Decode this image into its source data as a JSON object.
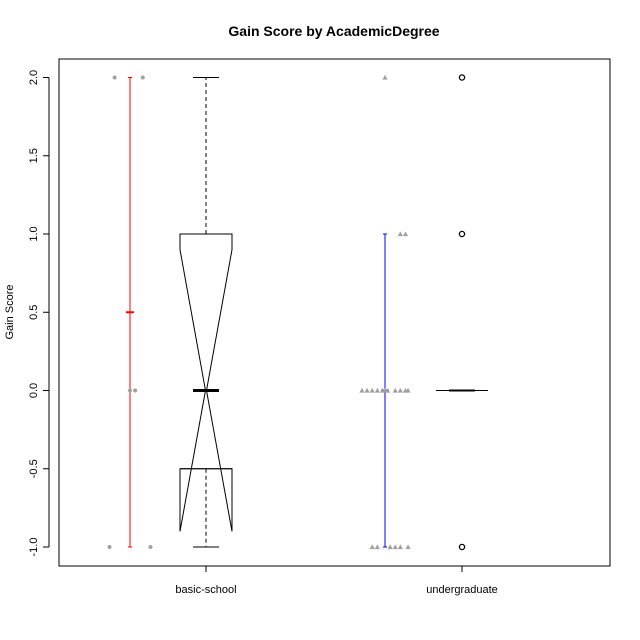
{
  "chart_data": {
    "type": "box",
    "title": "Gain Score by AcademicDegree",
    "xlabel": "",
    "ylabel": "Gain Score",
    "categories": [
      "basic-school",
      "undergraduate"
    ],
    "yticks": [
      -1.0,
      -0.5,
      0.0,
      0.5,
      1.0,
      1.5,
      2.0
    ],
    "ytick_labels": [
      "-1.0",
      "-0.5",
      "0.0",
      "0.5",
      "1.0",
      "1.5",
      "2.0"
    ],
    "ylim": [
      -1.12,
      2.12
    ],
    "notched": true,
    "boxes": [
      {
        "category": "basic-school",
        "min": -1.0,
        "q1": -0.5,
        "median": 0.0,
        "q3": 1.0,
        "max": 2.0,
        "notch_low": -0.9,
        "notch_high": 0.9,
        "outliers": []
      },
      {
        "category": "undergraduate",
        "min": 0.0,
        "q1": 0.0,
        "median": 0.0,
        "q3": 0.0,
        "max": 0.0,
        "notch_low": 0.0,
        "notch_high": 0.0,
        "outliers": [
          2.0,
          1.0,
          -1.0
        ]
      }
    ],
    "mean_ci": [
      {
        "category": "basic-school",
        "mean": 0.5,
        "low": -1.0,
        "high": 2.0,
        "color": "#ff0000"
      },
      {
        "category": "undergraduate",
        "mean": 0.0,
        "low": -1.0,
        "high": 1.0,
        "color": "#0000ff"
      }
    ],
    "jitter_points": [
      {
        "category": "basic-school",
        "shape": "circle",
        "color": "#a0a0a0",
        "points": [
          {
            "dx": -0.06,
            "y": 2.0
          },
          {
            "dx": 0.05,
            "y": 2.0
          },
          {
            "dx": 0.0,
            "y": 0.0
          },
          {
            "dx": 0.02,
            "y": 0.0
          },
          {
            "dx": -0.08,
            "y": -1.0
          },
          {
            "dx": 0.08,
            "y": -1.0
          }
        ]
      },
      {
        "category": "undergraduate",
        "shape": "triangle",
        "color": "#a0a0a0",
        "points": [
          {
            "dx": 0.0,
            "y": 2.0
          },
          {
            "dx": 0.06,
            "y": 1.0
          },
          {
            "dx": 0.08,
            "y": 1.0
          },
          {
            "dx": -0.09,
            "y": 0.0
          },
          {
            "dx": -0.07,
            "y": 0.0
          },
          {
            "dx": -0.05,
            "y": 0.0
          },
          {
            "dx": -0.03,
            "y": 0.0
          },
          {
            "dx": -0.01,
            "y": 0.0
          },
          {
            "dx": 0.0,
            "y": 0.0
          },
          {
            "dx": 0.01,
            "y": 0.0
          },
          {
            "dx": 0.04,
            "y": 0.0
          },
          {
            "dx": 0.06,
            "y": 0.0
          },
          {
            "dx": 0.08,
            "y": 0.0
          },
          {
            "dx": 0.09,
            "y": 0.0
          },
          {
            "dx": -0.05,
            "y": -1.0
          },
          {
            "dx": -0.03,
            "y": -1.0
          },
          {
            "dx": 0.02,
            "y": -1.0
          },
          {
            "dx": 0.04,
            "y": -1.0
          },
          {
            "dx": 0.06,
            "y": -1.0
          },
          {
            "dx": 0.09,
            "y": -1.0
          }
        ]
      }
    ],
    "grid": false,
    "legend": "none"
  }
}
